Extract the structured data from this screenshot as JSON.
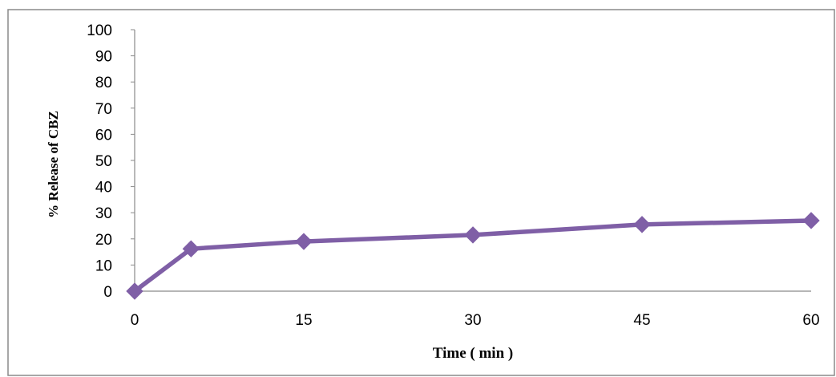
{
  "chart_data": {
    "type": "line",
    "title": "",
    "xlabel": "Time ( min )",
    "ylabel": "% Release of CBZ",
    "ylim": [
      0,
      100
    ],
    "y_ticks": [
      0,
      10,
      20,
      30,
      40,
      50,
      60,
      70,
      80,
      90,
      100
    ],
    "x_ticks": [
      0,
      15,
      30,
      45,
      60
    ],
    "xlim": [
      0,
      60
    ],
    "grid": false,
    "legend": "none",
    "series": [
      {
        "color": "#7f5fa6",
        "marker": "diamond",
        "points": [
          {
            "x": 0,
            "y": 0
          },
          {
            "x": 5,
            "y": 16.2
          },
          {
            "x": 15,
            "y": 19
          },
          {
            "x": 30,
            "y": 21.5
          },
          {
            "x": 45,
            "y": 25.5
          },
          {
            "x": 60,
            "y": 27
          }
        ]
      }
    ]
  }
}
